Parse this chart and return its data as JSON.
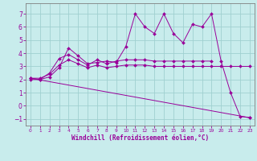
{
  "background_color": "#c8ecec",
  "grid_color": "#a0d0d0",
  "line_color": "#990099",
  "xlabel": "Windchill (Refroidissement éolien,°C)",
  "xlabel_color": "#990099",
  "tick_color": "#990099",
  "spine_color": "#808080",
  "ylim": [
    -1.5,
    7.8
  ],
  "xlim": [
    -0.5,
    23.5
  ],
  "yticks": [
    -1,
    0,
    1,
    2,
    3,
    4,
    5,
    6,
    7
  ],
  "xticks": [
    0,
    1,
    2,
    3,
    4,
    5,
    6,
    7,
    8,
    9,
    10,
    11,
    12,
    13,
    14,
    15,
    16,
    17,
    18,
    19,
    20,
    21,
    22,
    23
  ],
  "series1_x": [
    0,
    1,
    2,
    3,
    4,
    5,
    6,
    7,
    8,
    9,
    10,
    11,
    12,
    13,
    14,
    15,
    16,
    17,
    18,
    19,
    20,
    21,
    22,
    23
  ],
  "series1_y": [
    2.0,
    2.0,
    2.2,
    2.9,
    4.4,
    3.8,
    3.2,
    3.3,
    3.4,
    3.3,
    4.5,
    7.0,
    6.0,
    5.5,
    7.0,
    5.5,
    4.8,
    6.2,
    6.0,
    7.0,
    3.4,
    1.0,
    -0.8,
    -0.9
  ],
  "series2_x": [
    0,
    1,
    2,
    3,
    4,
    5,
    6,
    7,
    8,
    9,
    10,
    11,
    12,
    13,
    14,
    15,
    16,
    17,
    18,
    19
  ],
  "series2_y": [
    2.1,
    2.0,
    2.5,
    3.6,
    3.9,
    3.5,
    3.1,
    3.5,
    3.2,
    3.4,
    3.5,
    3.5,
    3.5,
    3.4,
    3.4,
    3.4,
    3.4,
    3.4,
    3.4,
    3.4
  ],
  "series3_x": [
    0,
    1,
    2,
    3,
    4,
    5,
    6,
    7,
    8,
    9,
    10,
    11,
    12,
    13,
    14,
    15,
    16,
    17,
    18,
    19,
    20,
    21,
    22,
    23
  ],
  "series3_y": [
    2.1,
    2.1,
    2.4,
    3.1,
    3.5,
    3.2,
    2.9,
    3.1,
    2.9,
    3.0,
    3.1,
    3.1,
    3.1,
    3.0,
    3.0,
    3.0,
    3.0,
    3.0,
    3.0,
    3.0,
    3.0,
    3.0,
    3.0,
    3.0
  ],
  "series4_x": [
    0,
    23
  ],
  "series4_y": [
    2.1,
    -0.9
  ],
  "marker_size": 2.0,
  "line_width": 0.7,
  "xlabel_fontsize": 5.5,
  "xlabel_fontweight": "bold",
  "tick_fontsize_x": 4.2,
  "tick_fontsize_y": 5.5
}
